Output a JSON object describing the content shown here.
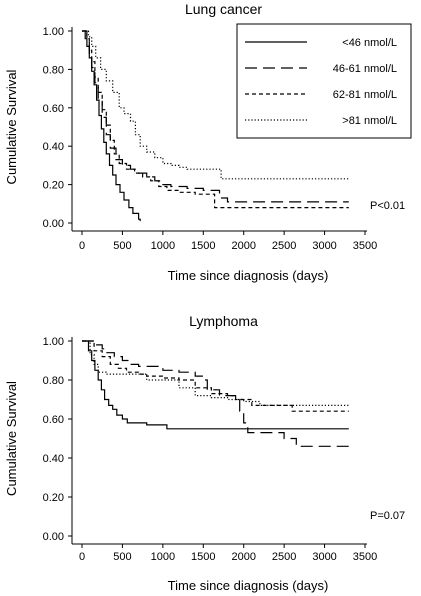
{
  "chart_data": [
    {
      "type": "line",
      "title": "Lung cancer",
      "xlabel": "Time since diagnosis (days)",
      "ylabel": "Cumulative Survival",
      "xlim": [
        0,
        3500
      ],
      "ylim": [
        0,
        1
      ],
      "xticks": [
        0,
        500,
        1000,
        1500,
        2000,
        2500,
        3000,
        3500
      ],
      "yticks": [
        "0.00",
        "0.20",
        "0.40",
        "0.60",
        "0.80",
        "1.00"
      ],
      "grid": false,
      "legend": "top-right",
      "annotation": "P<0.01",
      "series": [
        {
          "name": "<46 nmol/L",
          "dash": "solid",
          "points": [
            [
              0,
              1
            ],
            [
              20,
              1
            ],
            [
              40,
              0.96
            ],
            [
              60,
              0.92
            ],
            [
              90,
              0.86
            ],
            [
              120,
              0.79
            ],
            [
              150,
              0.72
            ],
            [
              180,
              0.64
            ],
            [
              210,
              0.56
            ],
            [
              240,
              0.49
            ],
            [
              270,
              0.42
            ],
            [
              300,
              0.36
            ],
            [
              340,
              0.3
            ],
            [
              380,
              0.25
            ],
            [
              420,
              0.2
            ],
            [
              470,
              0.16
            ],
            [
              520,
              0.12
            ],
            [
              580,
              0.08
            ],
            [
              630,
              0.05
            ],
            [
              700,
              0.02
            ],
            [
              720,
              0.01
            ]
          ]
        },
        {
          "name": "46-61 nmol/L",
          "dash": "longdash",
          "points": [
            [
              0,
              1
            ],
            [
              40,
              1
            ],
            [
              60,
              0.95
            ],
            [
              90,
              0.88
            ],
            [
              120,
              0.81
            ],
            [
              160,
              0.73
            ],
            [
              200,
              0.64
            ],
            [
              250,
              0.55
            ],
            [
              300,
              0.46
            ],
            [
              350,
              0.39
            ],
            [
              420,
              0.33
            ],
            [
              500,
              0.3
            ],
            [
              600,
              0.28
            ],
            [
              700,
              0.26
            ],
            [
              800,
              0.24
            ],
            [
              900,
              0.22
            ],
            [
              1000,
              0.2
            ],
            [
              1100,
              0.19
            ],
            [
              1300,
              0.18
            ],
            [
              1500,
              0.17
            ],
            [
              1700,
              0.13
            ],
            [
              1800,
              0.11
            ],
            [
              3300,
              0.11
            ]
          ]
        },
        {
          "name": "62-81 nmol/L",
          "dash": "shortdash",
          "points": [
            [
              0,
              1
            ],
            [
              40,
              1
            ],
            [
              60,
              0.96
            ],
            [
              90,
              0.9
            ],
            [
              120,
              0.84
            ],
            [
              160,
              0.76
            ],
            [
              200,
              0.68
            ],
            [
              250,
              0.59
            ],
            [
              300,
              0.51
            ],
            [
              350,
              0.43
            ],
            [
              400,
              0.36
            ],
            [
              460,
              0.31
            ],
            [
              550,
              0.28
            ],
            [
              650,
              0.26
            ],
            [
              750,
              0.24
            ],
            [
              850,
              0.22
            ],
            [
              950,
              0.19
            ],
            [
              1050,
              0.17
            ],
            [
              1200,
              0.16
            ],
            [
              1400,
              0.15
            ],
            [
              1620,
              0.15
            ],
            [
              1640,
              0.08
            ],
            [
              3300,
              0.08
            ]
          ]
        },
        {
          "name": ">81 nmol/L",
          "dash": "dotted",
          "points": [
            [
              0,
              1
            ],
            [
              60,
              1
            ],
            [
              80,
              0.97
            ],
            [
              120,
              0.92
            ],
            [
              170,
              0.86
            ],
            [
              230,
              0.8
            ],
            [
              300,
              0.74
            ],
            [
              380,
              0.68
            ],
            [
              460,
              0.6
            ],
            [
              520,
              0.57
            ],
            [
              600,
              0.53
            ],
            [
              660,
              0.46
            ],
            [
              720,
              0.4
            ],
            [
              800,
              0.37
            ],
            [
              900,
              0.34
            ],
            [
              1000,
              0.31
            ],
            [
              1100,
              0.3
            ],
            [
              1200,
              0.29
            ],
            [
              1300,
              0.28
            ],
            [
              1700,
              0.28
            ],
            [
              1720,
              0.23
            ],
            [
              3300,
              0.23
            ]
          ]
        }
      ]
    },
    {
      "type": "line",
      "title": "Lymphoma",
      "xlabel": "Time since diagnosis (days)",
      "ylabel": "Cumulative Survival",
      "xlim": [
        0,
        3500
      ],
      "ylim": [
        0,
        1
      ],
      "xticks": [
        0,
        500,
        1000,
        1500,
        2000,
        2500,
        3000,
        3500
      ],
      "yticks": [
        "0.00",
        "0.20",
        "0.40",
        "0.60",
        "0.80",
        "1.00"
      ],
      "grid": false,
      "legend": "none",
      "annotation": "P=0.07",
      "series": [
        {
          "name": "<46 nmol/L",
          "dash": "solid",
          "points": [
            [
              0,
              1
            ],
            [
              40,
              1
            ],
            [
              80,
              0.95
            ],
            [
              120,
              0.9
            ],
            [
              160,
              0.85
            ],
            [
              200,
              0.8
            ],
            [
              240,
              0.75
            ],
            [
              280,
              0.7
            ],
            [
              330,
              0.67
            ],
            [
              380,
              0.65
            ],
            [
              430,
              0.62
            ],
            [
              500,
              0.6
            ],
            [
              560,
              0.58
            ],
            [
              700,
              0.58
            ],
            [
              800,
              0.57
            ],
            [
              1000,
              0.57
            ],
            [
              1050,
              0.55
            ],
            [
              3300,
              0.55
            ]
          ]
        },
        {
          "name": "46-61 nmol/L",
          "dash": "longdash",
          "points": [
            [
              0,
              1
            ],
            [
              100,
              1
            ],
            [
              150,
              0.98
            ],
            [
              250,
              0.96
            ],
            [
              300,
              0.94
            ],
            [
              400,
              0.92
            ],
            [
              500,
              0.9
            ],
            [
              600,
              0.88
            ],
            [
              700,
              0.87
            ],
            [
              900,
              0.87
            ],
            [
              1000,
              0.85
            ],
            [
              1200,
              0.84
            ],
            [
              1400,
              0.82
            ],
            [
              1500,
              0.8
            ],
            [
              1550,
              0.75
            ],
            [
              1700,
              0.72
            ],
            [
              1900,
              0.7
            ],
            [
              1950,
              0.64
            ],
            [
              2000,
              0.58
            ],
            [
              2050,
              0.53
            ],
            [
              2300,
              0.53
            ],
            [
              2500,
              0.5
            ],
            [
              2650,
              0.46
            ],
            [
              3300,
              0.46
            ]
          ]
        },
        {
          "name": "62-81 nmol/L",
          "dash": "shortdash",
          "points": [
            [
              0,
              1
            ],
            [
              100,
              1
            ],
            [
              150,
              0.95
            ],
            [
              250,
              0.92
            ],
            [
              350,
              0.88
            ],
            [
              450,
              0.86
            ],
            [
              550,
              0.84
            ],
            [
              700,
              0.83
            ],
            [
              800,
              0.82
            ],
            [
              1000,
              0.81
            ],
            [
              1200,
              0.8
            ],
            [
              1400,
              0.76
            ],
            [
              1600,
              0.73
            ],
            [
              1800,
              0.72
            ],
            [
              1900,
              0.7
            ],
            [
              2100,
              0.67
            ],
            [
              2500,
              0.67
            ],
            [
              2600,
              0.64
            ],
            [
              3300,
              0.64
            ]
          ]
        },
        {
          "name": ">81 nmol/L",
          "dash": "dotted",
          "points": [
            [
              0,
              1
            ],
            [
              50,
              1
            ],
            [
              100,
              0.93
            ],
            [
              150,
              0.88
            ],
            [
              200,
              0.84
            ],
            [
              300,
              0.83
            ],
            [
              600,
              0.83
            ],
            [
              800,
              0.8
            ],
            [
              1000,
              0.8
            ],
            [
              1200,
              0.76
            ],
            [
              1400,
              0.72
            ],
            [
              1600,
              0.71
            ],
            [
              1800,
              0.7
            ],
            [
              2000,
              0.69
            ],
            [
              2200,
              0.67
            ],
            [
              3300,
              0.67
            ]
          ]
        }
      ]
    }
  ]
}
